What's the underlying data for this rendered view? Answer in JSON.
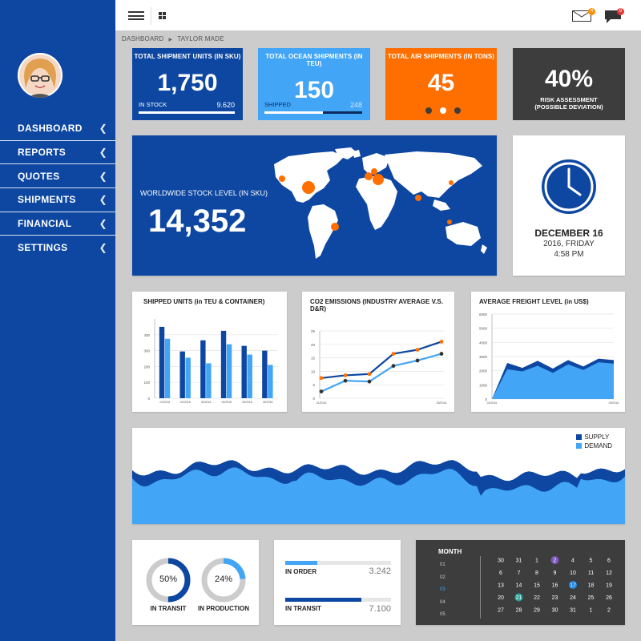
{
  "sidebar": {
    "items": [
      {
        "label": "DASHBOARD"
      },
      {
        "label": "REPORTS"
      },
      {
        "label": "QUOTES"
      },
      {
        "label": "SHIPMENTS"
      },
      {
        "label": "FINANCIAL"
      },
      {
        "label": "SETTINGS"
      }
    ]
  },
  "topbar": {
    "mail_badge": "4",
    "chat_badge": "9"
  },
  "breadcrumb": {
    "root": "DASHBOARD",
    "current": "TAYLOR MADE"
  },
  "kpis": [
    {
      "title": "TOTAL SHIPMENT UNITS (IN SKU)",
      "value": "1,750",
      "sub_label": "IN STOCK",
      "sub_value": "9.620",
      "color": "#0d47a1"
    },
    {
      "title": "TOTAL OCEAN SHIPMENTS (IN TEU)",
      "value": "150",
      "sub_label": "SHIPPED",
      "sub_value": "248",
      "color": "#42a5f5",
      "progress": 0.6
    },
    {
      "title": "TOTAL AIR SHIPMENTS (IN TONS)",
      "value": "45",
      "color": "#ff6f00"
    },
    {
      "value": "40%",
      "line1": "RISK ASSESSMENT",
      "line2": "(POSSIBLE DEVIATION)",
      "color": "#3d3d3d"
    }
  ],
  "world": {
    "label": "WORLDWIDE STOCK LEVEL (IN SKU)",
    "value": "14,352"
  },
  "clock": {
    "date": "DECEMBER 16",
    "weekday": "2016, FRIDAY",
    "time": "4:58 PM"
  },
  "charts": {
    "shipped": {
      "title": "SHIPPED UNITS (in TEU & CONTAINER)"
    },
    "co2": {
      "title": "CO2 EMISSIONS (INDUSTRY AVERAGE V.S. D&R)"
    },
    "freight": {
      "title": "AVERAGE FREIGHT LEVEL (in US$)"
    }
  },
  "chart_data": [
    {
      "type": "bar",
      "title": "SHIPPED UNITS (in TEU & CONTAINER)",
      "categories": [
        "01/2016",
        "02/2016",
        "03/2016",
        "04/2016",
        "05/2016",
        "06/2016"
      ],
      "ylim": [
        0,
        500
      ],
      "yticks": [
        0,
        100,
        200,
        300,
        400
      ],
      "series": [
        {
          "values": [
            450,
            295,
            365,
            425,
            330,
            300
          ],
          "color": "#0d47a1"
        },
        {
          "values": [
            375,
            255,
            220,
            340,
            275,
            210
          ],
          "color": "#42a5f5"
        }
      ]
    },
    {
      "type": "line",
      "title": "CO2 EMISSIONS (INDUSTRY AVERAGE V.S. D&R)",
      "x": [
        "01/2016",
        "",
        "",
        "",
        "",
        "05/2016"
      ],
      "ylim": [
        0,
        25
      ],
      "yticks": [
        0,
        5,
        10,
        15,
        20,
        25
      ],
      "series": [
        {
          "values": [
            7.5,
            8.5,
            9.0,
            16.5,
            18.0,
            21.0
          ],
          "color": "#0d47a1",
          "dot": "#ff6f00"
        },
        {
          "values": [
            2.5,
            6.5,
            6.2,
            12.0,
            14.0,
            16.5
          ],
          "color": "#42a5f5",
          "dot": "#333"
        }
      ]
    },
    {
      "type": "area",
      "title": "AVERAGE FREIGHT LEVEL (in US$)",
      "x": [
        "01/2016",
        "",
        "",
        "",
        "",
        "",
        "",
        "",
        "05/2016"
      ],
      "ylim": [
        0,
        6000
      ],
      "yticks": [
        0,
        1000,
        2000,
        3000,
        4000,
        5000,
        6000
      ],
      "series": [
        {
          "values": [
            0,
            2550,
            2200,
            2700,
            2150,
            2750,
            2300,
            2850,
            2750
          ],
          "color": "#0d47a1"
        },
        {
          "values": [
            0,
            2100,
            1950,
            2350,
            1850,
            2450,
            2050,
            2600,
            2500
          ],
          "color": "#42a5f5"
        }
      ]
    },
    {
      "type": "area",
      "legend": "top-right",
      "series": [
        {
          "name": "SUPPLY",
          "color": "#0d47a1"
        },
        {
          "name": "DEMAND",
          "color": "#42a5f5"
        }
      ]
    }
  ],
  "donuts": [
    {
      "value": "50%",
      "label": "IN TRANSIT",
      "pct": 0.5
    },
    {
      "value": "24%",
      "label": "IN PRODUCTION",
      "pct": 0.24
    }
  ],
  "orders": [
    {
      "label": "IN ORDER",
      "value": "3.242",
      "pct": 0.3
    },
    {
      "label": "IN TRANSIT",
      "value": "7.100",
      "pct": 0.72
    }
  ],
  "calendar": {
    "title": "MONTH",
    "months": [
      "01",
      "02",
      "03",
      "04",
      "05"
    ],
    "rows": [
      [
        "30",
        "31",
        "1",
        "2",
        "4",
        "5",
        "6"
      ],
      [
        "6",
        "7",
        "8",
        "9",
        "10",
        "11",
        "12"
      ],
      [
        "13",
        "14",
        "15",
        "16",
        "17",
        "18",
        "19"
      ],
      [
        "20",
        "21",
        "22",
        "23",
        "24",
        "25",
        "26"
      ],
      [
        "27",
        "28",
        "29",
        "30",
        "31",
        "1",
        "2"
      ]
    ]
  }
}
